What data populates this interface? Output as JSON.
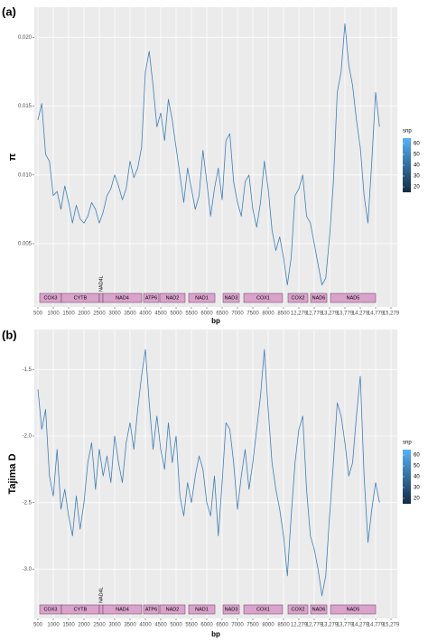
{
  "chart_data": [
    {
      "type": "line",
      "title": "(a)",
      "y_label": "π",
      "x_label": "bp",
      "xlim": [
        500,
        15279
      ],
      "xticks": [
        500,
        1000,
        1500,
        2000,
        2500,
        3000,
        3500,
        4000,
        4500,
        5000,
        5500,
        6000,
        6500,
        7000,
        7500,
        8000,
        8500,
        {
          "value": 12279,
          "label": "12,279"
        },
        {
          "value": 12779,
          "label": "12,779"
        },
        {
          "value": 13279,
          "label": "13,279"
        },
        {
          "value": 13779,
          "label": "13,779"
        },
        {
          "value": 14279,
          "label": "14,279"
        },
        {
          "value": 14779,
          "label": "14,779"
        },
        {
          "value": 15279,
          "label": "15,279"
        }
      ],
      "ylim": [
        0.0004,
        0.0222
      ],
      "yticks": [
        0.005,
        {
          "value": 0.01,
          "label": "0.010"
        },
        0.015,
        {
          "value": 0.02,
          "label": "0.020"
        }
      ],
      "grid": true,
      "x": [
        500,
        625,
        750,
        875,
        1000,
        1125,
        1250,
        1375,
        1500,
        1625,
        1750,
        1875,
        2000,
        2125,
        2250,
        2375,
        2500,
        2625,
        2750,
        2875,
        3000,
        3125,
        3250,
        3375,
        3500,
        3625,
        3750,
        3875,
        4000,
        4125,
        4250,
        4375,
        4500,
        4625,
        4750,
        4875,
        5000,
        5125,
        5250,
        5375,
        5500,
        5625,
        5750,
        5875,
        6000,
        6125,
        6250,
        6375,
        6500,
        6625,
        6750,
        6875,
        7000,
        7125,
        7250,
        7375,
        7500,
        7625,
        7750,
        7875,
        8000,
        8125,
        8250,
        8375,
        8500,
        9445,
        10390,
        11335,
        12279,
        12404,
        12529,
        12654,
        12779,
        12904,
        13029,
        13154,
        13279,
        13404,
        13529,
        13654,
        13779,
        13904,
        14029,
        14154,
        14279,
        14404,
        14529,
        14654,
        14779,
        14904
      ],
      "series": [
        {
          "color": "#3f7fb8",
          "values": [
            0.014,
            0.0152,
            0.0115,
            0.011,
            0.0085,
            0.0088,
            0.0075,
            0.0092,
            0.008,
            0.0065,
            0.0078,
            0.0068,
            0.0065,
            0.007,
            0.008,
            0.0075,
            0.0065,
            0.0073,
            0.0085,
            0.009,
            0.01,
            0.0092,
            0.0082,
            0.009,
            0.011,
            0.0098,
            0.0105,
            0.012,
            0.0175,
            0.019,
            0.0165,
            0.0135,
            0.0145,
            0.0125,
            0.0155,
            0.014,
            0.012,
            0.01,
            0.008,
            0.0105,
            0.009,
            0.0075,
            0.0085,
            0.0118,
            0.0095,
            0.007,
            0.009,
            0.0105,
            0.0082,
            0.0125,
            0.013,
            0.0095,
            0.008,
            0.007,
            0.0095,
            0.01,
            0.0075,
            0.0062,
            0.008,
            0.011,
            0.009,
            0.006,
            0.0045,
            0.0055,
            0.004,
            0.002,
            0.004,
            0.0085,
            0.009,
            0.01,
            0.007,
            0.0065,
            0.005,
            0.0035,
            0.002,
            0.0025,
            0.0055,
            0.0095,
            0.016,
            0.0175,
            0.021,
            0.018,
            0.0165,
            0.014,
            0.012,
            0.0085,
            0.0065,
            0.011,
            0.016,
            0.0135
          ]
        }
      ],
      "genes": [
        {
          "name": "COX3",
          "start": 559,
          "end": 1265
        },
        {
          "name": "CYTB",
          "start": 1265,
          "end": 2500
        },
        {
          "name": "NAD4L",
          "start": 2500,
          "end": 2618
        },
        {
          "name": "NAD4",
          "start": 2618,
          "end": 3882
        },
        {
          "name": "ATP6",
          "start": 3941,
          "end": 4441
        },
        {
          "name": "NAD2",
          "start": 4471,
          "end": 5294
        },
        {
          "name": "NAD1",
          "start": 5412,
          "end": 6265
        },
        {
          "name": "NAD3",
          "start": 6529,
          "end": 7059
        },
        {
          "name": "COX1",
          "start": 7206,
          "end": 8471
        },
        {
          "name": "COX2",
          "start": 9611,
          "end": 12573
        },
        {
          "name": "NAD6",
          "start": 12661,
          "end": 13191
        },
        {
          "name": "NAD5",
          "start": 13308,
          "end": 14779
        }
      ],
      "legend": {
        "title": "snp",
        "low": "#132b43",
        "high": "#56b1f7",
        "lim": [
          15,
          65
        ],
        "ticks": [
          20,
          30,
          40,
          50,
          60
        ]
      }
    },
    {
      "type": "line",
      "title": "(b)",
      "y_label": "Tajima D",
      "x_label": "bp",
      "xlim": [
        500,
        15279
      ],
      "xticks": [
        500,
        1000,
        1500,
        2000,
        2500,
        3000,
        3500,
        4000,
        4500,
        5000,
        5500,
        6000,
        6500,
        7000,
        7500,
        8000,
        8500,
        {
          "value": 12279,
          "label": "12,279"
        },
        {
          "value": 12779,
          "label": "12,779"
        },
        {
          "value": 13279,
          "label": "13,279"
        },
        {
          "value": 13779,
          "label": "13,779"
        },
        {
          "value": 14279,
          "label": "14,279"
        },
        {
          "value": 14779,
          "label": "14,779"
        },
        {
          "value": 15279,
          "label": "15,279"
        }
      ],
      "ylim": [
        -3.37,
        -1.2
      ],
      "yticks": [
        -1.5,
        {
          "value": -2,
          "label": "-2.0"
        },
        -2.5,
        {
          "value": -3,
          "label": "-3.0"
        }
      ],
      "grid": true,
      "x": [
        500,
        625,
        750,
        875,
        1000,
        1125,
        1250,
        1375,
        1500,
        1625,
        1750,
        1875,
        2000,
        2125,
        2250,
        2375,
        2500,
        2625,
        2750,
        2875,
        3000,
        3125,
        3250,
        3375,
        3500,
        3625,
        3750,
        3875,
        4000,
        4125,
        4250,
        4375,
        4500,
        4625,
        4750,
        4875,
        5000,
        5125,
        5250,
        5375,
        5500,
        5625,
        5750,
        5875,
        6000,
        6125,
        6250,
        6375,
        6500,
        6625,
        6750,
        6875,
        7000,
        7125,
        7250,
        7375,
        7500,
        7625,
        7750,
        7875,
        8000,
        8125,
        8250,
        8375,
        8500,
        9445,
        10390,
        11335,
        12279,
        12404,
        12529,
        12654,
        12779,
        12904,
        13029,
        13154,
        13279,
        13404,
        13529,
        13654,
        13779,
        13904,
        14029,
        14154,
        14279,
        14404,
        14529,
        14654,
        14779,
        14904
      ],
      "series": [
        {
          "color": "#3f7fb8",
          "values": [
            -1.65,
            -1.95,
            -1.8,
            -2.3,
            -2.45,
            -2.1,
            -2.55,
            -2.4,
            -2.6,
            -2.75,
            -2.45,
            -2.7,
            -2.5,
            -2.2,
            -2.05,
            -2.4,
            -2.1,
            -2.3,
            -2.15,
            -2.35,
            -2.0,
            -2.2,
            -2.35,
            -2.05,
            -1.9,
            -2.1,
            -1.8,
            -1.55,
            -1.35,
            -1.75,
            -2.1,
            -1.85,
            -2.1,
            -2.25,
            -1.9,
            -2.2,
            -2.0,
            -2.45,
            -2.6,
            -2.35,
            -2.5,
            -2.3,
            -2.15,
            -2.25,
            -2.5,
            -2.6,
            -2.3,
            -2.75,
            -2.35,
            -1.9,
            -1.95,
            -2.2,
            -2.55,
            -2.3,
            -2.1,
            -2.4,
            -2.2,
            -1.95,
            -1.7,
            -1.35,
            -1.8,
            -2.2,
            -2.4,
            -2.55,
            -2.75,
            -3.05,
            -2.6,
            -2.2,
            -1.95,
            -1.85,
            -2.4,
            -2.75,
            -2.85,
            -3.0,
            -3.2,
            -3.05,
            -2.6,
            -2.2,
            -1.75,
            -1.85,
            -2.05,
            -2.3,
            -2.2,
            -1.85,
            -1.55,
            -2.3,
            -2.8,
            -2.55,
            -2.35,
            -2.5
          ]
        }
      ],
      "genes": [
        {
          "name": "COX3",
          "start": 559,
          "end": 1265
        },
        {
          "name": "CYTB",
          "start": 1265,
          "end": 2500
        },
        {
          "name": "NAD4L",
          "start": 2500,
          "end": 2618
        },
        {
          "name": "NAD4",
          "start": 2618,
          "end": 3882
        },
        {
          "name": "ATP6",
          "start": 3941,
          "end": 4441
        },
        {
          "name": "NAD2",
          "start": 4471,
          "end": 5294
        },
        {
          "name": "NAD1",
          "start": 5412,
          "end": 6265
        },
        {
          "name": "NAD3",
          "start": 6529,
          "end": 7059
        },
        {
          "name": "COX1",
          "start": 7206,
          "end": 8471
        },
        {
          "name": "COX2",
          "start": 9611,
          "end": 12573
        },
        {
          "name": "NAD6",
          "start": 12661,
          "end": 13191
        },
        {
          "name": "NAD5",
          "start": 13308,
          "end": 14779
        }
      ],
      "legend": {
        "title": "snp",
        "low": "#132b43",
        "high": "#56b1f7",
        "lim": [
          15,
          65
        ],
        "ticks": [
          20,
          30,
          40,
          50,
          60
        ]
      }
    }
  ]
}
